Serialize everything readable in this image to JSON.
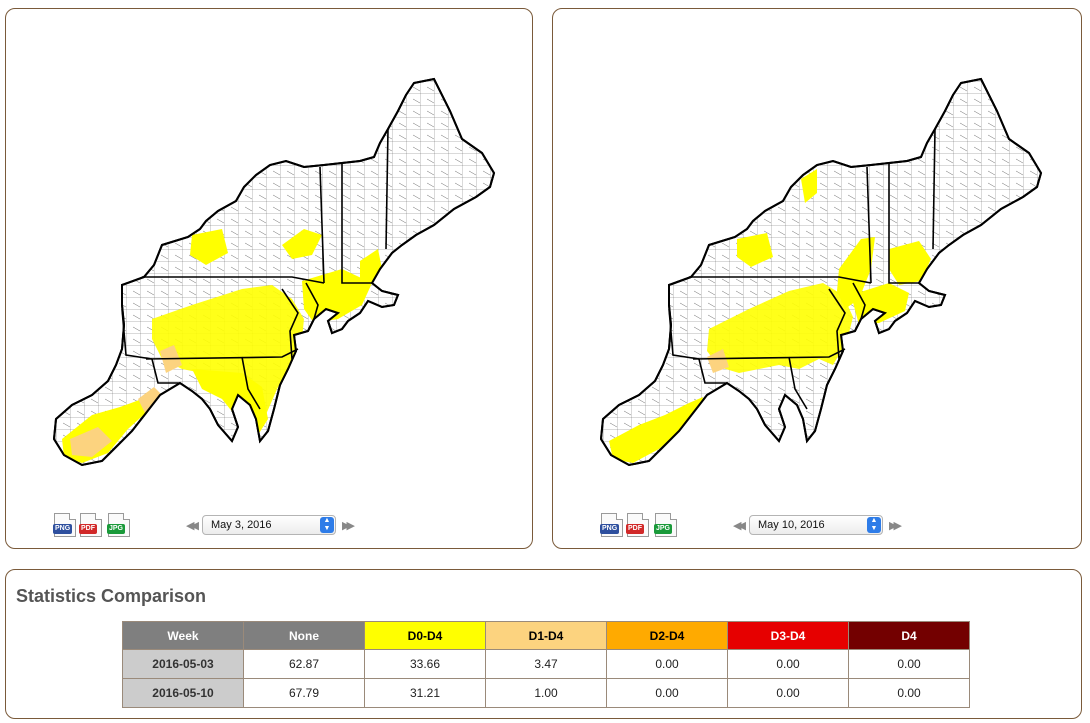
{
  "left_panel": {
    "download_icons": [
      {
        "label": "PNG",
        "color": "#2e4f9e"
      },
      {
        "label": "PDF",
        "color": "#d12828"
      },
      {
        "label": "JPG",
        "color": "#1a9a3a"
      }
    ],
    "selected_date": "May 3, 2016"
  },
  "right_panel": {
    "download_icons": [
      {
        "label": "PNG",
        "color": "#2e4f9e"
      },
      {
        "label": "PDF",
        "color": "#d12828"
      },
      {
        "label": "JPG",
        "color": "#1a9a3a"
      }
    ],
    "selected_date": "May 10, 2016"
  },
  "legend_colors": {
    "none": "#ffffff",
    "D0": "#ffff00",
    "D1": "#fcd37f",
    "D2": "#ffaa00",
    "D3": "#e60000",
    "D4": "#730000"
  },
  "statistics": {
    "title": "Statistics Comparison",
    "headers": [
      {
        "label": "Week",
        "bg": "#7f7f7f",
        "fg": "#ffffff"
      },
      {
        "label": "None",
        "bg": "#7f7f7f",
        "fg": "#ffffff"
      },
      {
        "label": "D0-D4",
        "bg": "#ffff00",
        "fg": "#000000"
      },
      {
        "label": "D1-D4",
        "bg": "#fcd37f",
        "fg": "#000000"
      },
      {
        "label": "D2-D4",
        "bg": "#ffaa00",
        "fg": "#000000"
      },
      {
        "label": "D3-D4",
        "bg": "#e60000",
        "fg": "#ffffff"
      },
      {
        "label": "D4",
        "bg": "#730000",
        "fg": "#ffffff"
      }
    ],
    "rows": [
      {
        "week": "2016-05-03",
        "values": [
          "62.87",
          "33.66",
          "3.47",
          "0.00",
          "0.00",
          "0.00"
        ]
      },
      {
        "week": "2016-05-10",
        "values": [
          "67.79",
          "31.21",
          "1.00",
          "0.00",
          "0.00",
          "0.00"
        ]
      }
    ]
  }
}
